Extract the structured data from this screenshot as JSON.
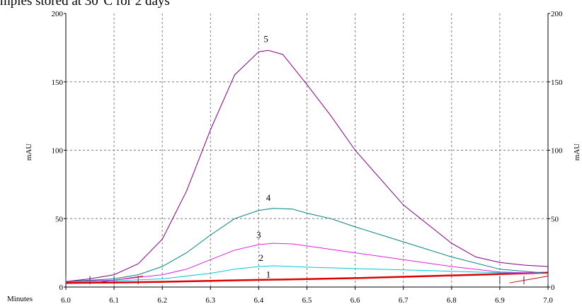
{
  "title": "mples stored at 30°C for 2 days",
  "chart_data": {
    "type": "line",
    "title": "mples stored at 30°C for 2 days",
    "xlabel": "Minutes",
    "ylabel": "mAU",
    "ylabel_right": "mAU",
    "xlim": [
      6.0,
      7.0
    ],
    "ylim": [
      0,
      200
    ],
    "grid": true,
    "x_ticks": [
      6.0,
      6.1,
      6.2,
      6.3,
      6.4,
      6.5,
      6.6,
      6.7,
      6.8,
      6.9,
      7.0
    ],
    "x_tick_labels": [
      "6.0",
      "6.1",
      "6.2",
      "6.3",
      "6.4",
      "6.5",
      "6.6",
      "6.7",
      "6.8",
      "6.9",
      "7.0"
    ],
    "y_ticks": [
      0,
      50,
      100,
      150,
      200
    ],
    "y_tick_labels": [
      "0",
      "50",
      "100",
      "150",
      "200"
    ],
    "series": [
      {
        "name": "1",
        "color": "#dd0000",
        "points": [
          [
            6.0,
            3
          ],
          [
            6.1,
            3.3
          ],
          [
            6.2,
            3.8
          ],
          [
            6.3,
            4.5
          ],
          [
            6.4,
            5.2
          ],
          [
            6.45,
            5.5
          ],
          [
            6.5,
            5.8
          ],
          [
            6.6,
            6.5
          ],
          [
            6.7,
            7.5
          ],
          [
            6.8,
            8.5
          ],
          [
            6.9,
            9.5
          ],
          [
            7.0,
            10.5
          ]
        ],
        "label_pos": [
          6.42,
          7
        ]
      },
      {
        "name": "2",
        "color": "#00c8d8",
        "points": [
          [
            6.0,
            4
          ],
          [
            6.1,
            4.5
          ],
          [
            6.2,
            6
          ],
          [
            6.3,
            10
          ],
          [
            6.35,
            13
          ],
          [
            6.4,
            15
          ],
          [
            6.43,
            15.5
          ],
          [
            6.47,
            15
          ],
          [
            6.5,
            14.5
          ],
          [
            6.6,
            13.5
          ],
          [
            6.7,
            12.5
          ],
          [
            6.8,
            11.5
          ],
          [
            6.9,
            10.5
          ],
          [
            7.0,
            10
          ]
        ],
        "label_pos": [
          6.405,
          19
        ]
      },
      {
        "name": "3",
        "color": "#e020e0",
        "points": [
          [
            6.0,
            4
          ],
          [
            6.1,
            5
          ],
          [
            6.2,
            9
          ],
          [
            6.25,
            13
          ],
          [
            6.3,
            20
          ],
          [
            6.35,
            27
          ],
          [
            6.4,
            31
          ],
          [
            6.43,
            32
          ],
          [
            6.47,
            31.5
          ],
          [
            6.5,
            30
          ],
          [
            6.6,
            25
          ],
          [
            6.7,
            20
          ],
          [
            6.8,
            15
          ],
          [
            6.9,
            11
          ],
          [
            7.0,
            10
          ]
        ],
        "label_pos": [
          6.4,
          36
        ]
      },
      {
        "name": "4",
        "color": "#008080",
        "points": [
          [
            6.0,
            4
          ],
          [
            6.1,
            6
          ],
          [
            6.15,
            9
          ],
          [
            6.2,
            15
          ],
          [
            6.25,
            25
          ],
          [
            6.3,
            38
          ],
          [
            6.35,
            50
          ],
          [
            6.4,
            56
          ],
          [
            6.43,
            57.5
          ],
          [
            6.47,
            57
          ],
          [
            6.5,
            54
          ],
          [
            6.55,
            50
          ],
          [
            6.6,
            44
          ],
          [
            6.7,
            33
          ],
          [
            6.8,
            22
          ],
          [
            6.9,
            13
          ],
          [
            7.0,
            10
          ]
        ],
        "label_pos": [
          6.42,
          63
        ]
      },
      {
        "name": "5",
        "color": "#800080",
        "points": [
          [
            6.0,
            4
          ],
          [
            6.05,
            6
          ],
          [
            6.1,
            9
          ],
          [
            6.15,
            17
          ],
          [
            6.2,
            35
          ],
          [
            6.25,
            70
          ],
          [
            6.3,
            115
          ],
          [
            6.35,
            155
          ],
          [
            6.4,
            172
          ],
          [
            6.42,
            173
          ],
          [
            6.45,
            170
          ],
          [
            6.5,
            148
          ],
          [
            6.55,
            125
          ],
          [
            6.6,
            100
          ],
          [
            6.7,
            60
          ],
          [
            6.8,
            32
          ],
          [
            6.85,
            22
          ],
          [
            6.9,
            18
          ],
          [
            6.95,
            16
          ],
          [
            7.0,
            15
          ]
        ],
        "label_pos": [
          6.415,
          179
        ]
      }
    ]
  }
}
